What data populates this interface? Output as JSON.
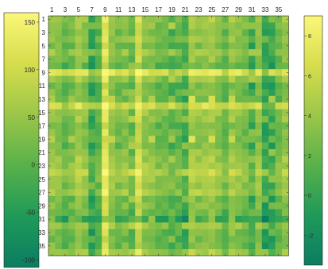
{
  "chart_data": {
    "type": "heatmap",
    "title": "",
    "xlabel": "",
    "ylabel": "",
    "x_tick_labels": [
      "1",
      "3",
      "5",
      "7",
      "9",
      "11",
      "13",
      "15",
      "17",
      "19",
      "21",
      "23",
      "25",
      "27",
      "29",
      "31",
      "33",
      "35"
    ],
    "y_tick_labels": [
      "1",
      "3",
      "5",
      "7",
      "9",
      "11",
      "13",
      "15",
      "17",
      "19",
      "21",
      "23",
      "25",
      "27",
      "29",
      "31",
      "33",
      "35"
    ],
    "left_colorbar": {
      "ticks": [
        -100,
        -50,
        0,
        50,
        100,
        150
      ],
      "range": [
        -108,
        160
      ]
    },
    "right_colorbar": {
      "ticks": [
        -2,
        0,
        2,
        4,
        6,
        8
      ],
      "range": [
        -3.5,
        9
      ]
    },
    "colormap": [
      "#0b7d62",
      "#1f9a59",
      "#58b14a",
      "#9cc649",
      "#d6dd4c",
      "#fbf779"
    ],
    "matrix_size": 36,
    "row_scores": [
      0.1,
      0.05,
      -0.05,
      0.05,
      -0.1,
      0.1,
      -0.05,
      -0.2,
      0.6,
      0.1,
      -0.15,
      -0.1,
      0.3,
      0.45,
      0.1,
      0.05,
      -0.1,
      -0.05,
      0.35,
      -0.1,
      0.05,
      0.1,
      0.15,
      0.3,
      0.15,
      0.05,
      0.2,
      -0.1,
      -0.05,
      -0.15,
      -0.05,
      0.1,
      -0.1,
      -0.15,
      -0.1,
      0.15
    ],
    "col_scores": [
      0.1,
      0.05,
      -0.15,
      -0.05,
      0.2,
      0.05,
      -0.1,
      -0.2,
      0.65,
      0.1,
      -0.05,
      0.05,
      0.25,
      0.5,
      0.1,
      0.05,
      -0.1,
      -0.1,
      0.15,
      -0.15,
      0.05,
      0.2,
      0.1,
      0.15,
      0.2,
      0.05,
      -0.15,
      0.15,
      0.05,
      -0.05,
      0.05,
      0.1,
      -0.1,
      -0.05,
      -0.1,
      0.1
    ],
    "dark_rows": [
      13,
      19,
      31
    ],
    "dark_cols": [
      7,
      13,
      19,
      21,
      31,
      33,
      34
    ],
    "zero_level": 0.52
  }
}
